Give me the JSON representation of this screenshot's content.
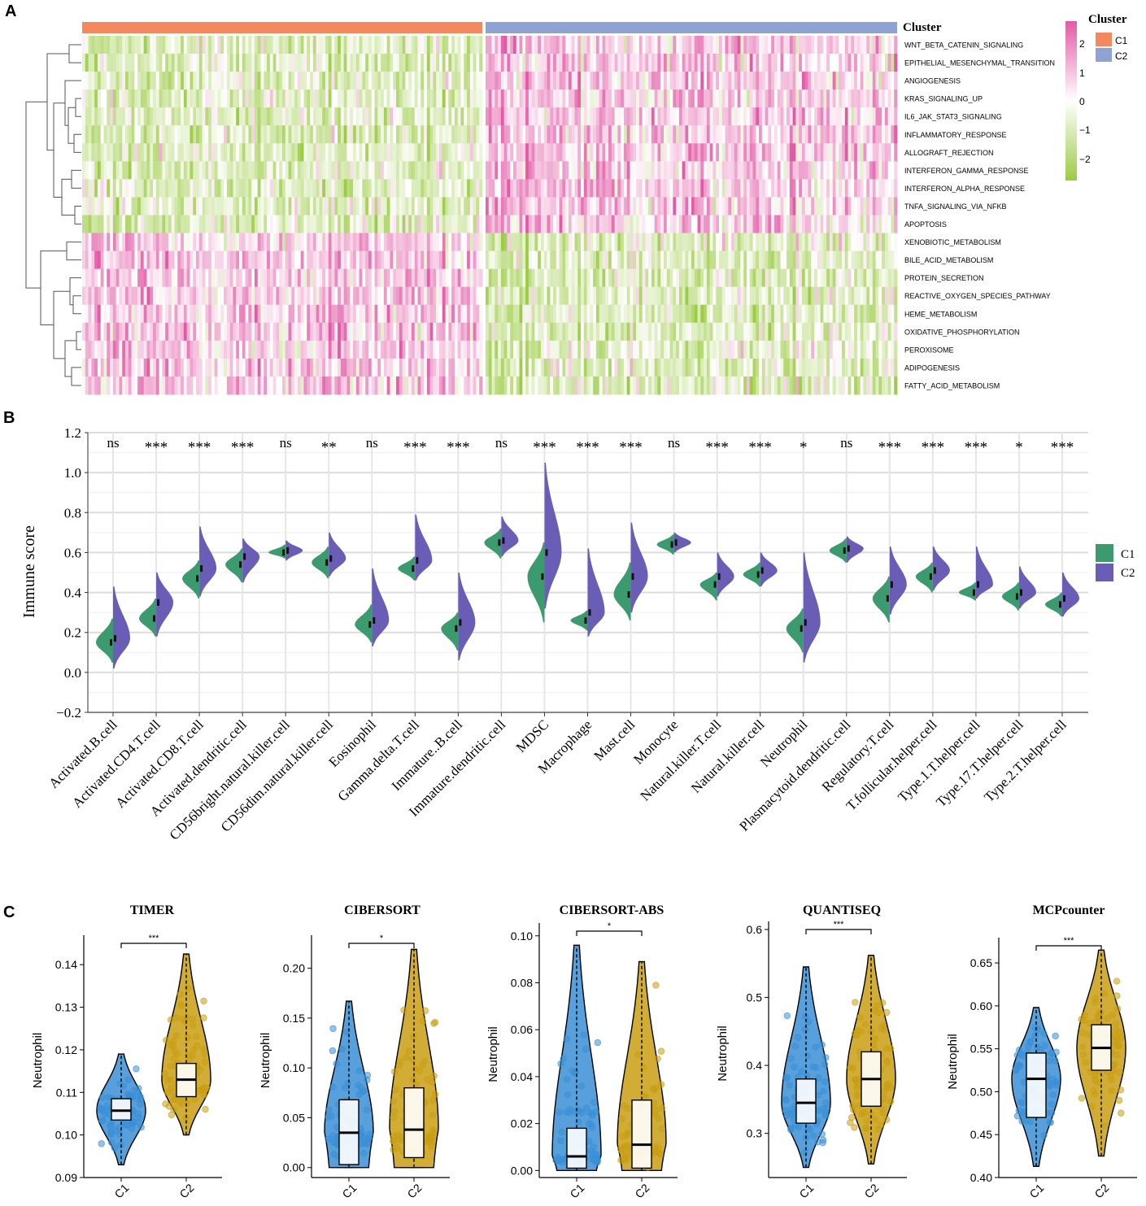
{
  "colors": {
    "c1_annot": "#f4895f",
    "c2_annot": "#8fa2d4",
    "heat_high": "#e25aa6",
    "heat_mid": "#ffffff",
    "heat_low": "#9ccb44",
    "violin_c1": "#3c9b6e",
    "violin_c2": "#6a5db5",
    "box_c1": "#3b8fd6",
    "box_c2": "#c99f13"
  },
  "panel_a": {
    "label": "A",
    "annotation_label": "Cluster",
    "legend_title": "Cluster",
    "legend_items": [
      "C1",
      "C2"
    ],
    "scale_ticks": [
      "2",
      "1",
      "0",
      "−1",
      "−2"
    ],
    "rows": [
      {
        "name": "WNT_BETA_CATENIN_SIGNALING",
        "pattern": -1
      },
      {
        "name": "EPITHELIAL_MESENCHYMAL_TRANSITION",
        "pattern": -1
      },
      {
        "name": "ANGIOGENESIS",
        "pattern": -1
      },
      {
        "name": "KRAS_SIGNALING_UP",
        "pattern": -1
      },
      {
        "name": "IL6_JAK_STAT3_SIGNALING",
        "pattern": -1
      },
      {
        "name": "INFLAMMATORY_RESPONSE",
        "pattern": -1
      },
      {
        "name": "ALLOGRAFT_REJECTION",
        "pattern": -1
      },
      {
        "name": "INTERFERON_GAMMA_RESPONSE",
        "pattern": -1
      },
      {
        "name": "INTERFERON_ALPHA_RESPONSE",
        "pattern": -1
      },
      {
        "name": "TNFA_SIGNALING_VIA_NFKB",
        "pattern": -1
      },
      {
        "name": "APOPTOSIS",
        "pattern": -1
      },
      {
        "name": "XENOBIOTIC_METABOLISM",
        "pattern": 1
      },
      {
        "name": "BILE_ACID_METABOLISM",
        "pattern": 1
      },
      {
        "name": "PROTEIN_SECRETION",
        "pattern": 1
      },
      {
        "name": "REACTIVE_OXYGEN_SPECIES_PATHWAY",
        "pattern": 1
      },
      {
        "name": "HEME_METABOLISM",
        "pattern": 1
      },
      {
        "name": "OXIDATIVE_PHOSPHORYLATION",
        "pattern": 1
      },
      {
        "name": "PEROXISOME",
        "pattern": 1
      },
      {
        "name": "ADIPOGENESIS",
        "pattern": 1
      },
      {
        "name": "FATTY_ACID_METABOLISM",
        "pattern": 1
      }
    ]
  },
  "panel_b": {
    "label": "B",
    "ylabel": "Immune score",
    "ylim": [
      -0.2,
      1.2
    ],
    "yticks": [
      "−0.2",
      "0.0",
      "0.2",
      "0.4",
      "0.6",
      "0.8",
      "1.0",
      "1.2"
    ],
    "legend": [
      "C1",
      "C2"
    ]
  },
  "chart_data": [
    {
      "type": "heatmap",
      "title": "",
      "columns_c1": 130,
      "columns_c2": 134,
      "value_range": [
        -2.5,
        2.5
      ],
      "note": "rows 1-11 higher in C2; rows 12-20 higher in C1"
    },
    {
      "type": "violin",
      "title": "",
      "xlabel": "",
      "ylabel": "Immune score",
      "ylim": [
        -0.2,
        1.2
      ],
      "categories": [
        "Activated.B.cell",
        "Activated.CD4.T.cell",
        "Activated.CD8.T.cell",
        "Activated.dendritic.cell",
        "CD56bright.natural.killer.cell",
        "CD56dim.natural.killer.cell",
        "Eosinophil",
        "Gamma.delta.T.cell",
        "Immature..B.cell",
        "Immature.dendritic.cell",
        "MDSC",
        "Macrophage",
        "Mast.cell",
        "Monocyte",
        "Natural.killer.T.cell",
        "Natural.killer.cell",
        "Neutrophil",
        "Plasmacytoid.dendritic.cell",
        "Regulatory.T.cell",
        "T.follicular.helper.cell",
        "Type.1.T.helper.cell",
        "Type.17.T.helper.cell",
        "Type.2.T.helper.cell"
      ],
      "significance": [
        "ns",
        "***",
        "***",
        "***",
        "ns",
        "**",
        "ns",
        "***",
        "***",
        "ns",
        "***",
        "***",
        "***",
        "ns",
        "***",
        "***",
        "*",
        "ns",
        "***",
        "***",
        "***",
        "*",
        "***"
      ],
      "series": [
        {
          "name": "C1",
          "median": [
            0.15,
            0.27,
            0.47,
            0.54,
            0.6,
            0.55,
            0.24,
            0.52,
            0.22,
            0.65,
            0.48,
            0.26,
            0.39,
            0.64,
            0.44,
            0.49,
            0.22,
            0.61,
            0.37,
            0.48,
            0.4,
            0.38,
            0.34
          ],
          "min": [
            0.05,
            0.18,
            0.37,
            0.45,
            0.57,
            0.47,
            0.15,
            0.46,
            0.11,
            0.57,
            0.25,
            0.21,
            0.26,
            0.59,
            0.36,
            0.43,
            0.1,
            0.55,
            0.25,
            0.4,
            0.36,
            0.31,
            0.28
          ],
          "max": [
            0.27,
            0.37,
            0.56,
            0.62,
            0.64,
            0.63,
            0.34,
            0.58,
            0.3,
            0.72,
            0.65,
            0.31,
            0.55,
            0.69,
            0.5,
            0.55,
            0.32,
            0.67,
            0.48,
            0.55,
            0.45,
            0.45,
            0.4
          ]
        },
        {
          "name": "C2",
          "median": [
            0.17,
            0.35,
            0.52,
            0.58,
            0.61,
            0.57,
            0.26,
            0.56,
            0.25,
            0.66,
            0.6,
            0.3,
            0.48,
            0.65,
            0.48,
            0.51,
            0.25,
            0.62,
            0.44,
            0.51,
            0.44,
            0.4,
            0.37
          ],
          "min": [
            0.02,
            0.18,
            0.38,
            0.45,
            0.56,
            0.48,
            0.13,
            0.46,
            0.06,
            0.58,
            0.32,
            0.18,
            0.3,
            0.6,
            0.38,
            0.43,
            0.05,
            0.55,
            0.29,
            0.41,
            0.37,
            0.32,
            0.28
          ],
          "max": [
            0.43,
            0.5,
            0.73,
            0.67,
            0.66,
            0.7,
            0.52,
            0.79,
            0.5,
            0.78,
            1.05,
            0.62,
            0.75,
            0.7,
            0.6,
            0.6,
            0.6,
            0.68,
            0.63,
            0.63,
            0.63,
            0.53,
            0.5
          ]
        }
      ]
    },
    {
      "type": "violin-box",
      "title": "TIMER",
      "ylabel": "Neutrophil",
      "ylim": [
        0.09,
        0.145
      ],
      "yticks": [
        "0.09",
        "0.10",
        "0.11",
        "0.12",
        "0.13",
        "0.14"
      ],
      "categories": [
        "C1",
        "C2"
      ],
      "significance": "***",
      "series": [
        {
          "name": "C1",
          "min": 0.093,
          "q1": 0.1035,
          "median": 0.1057,
          "q3": 0.1085,
          "max": 0.119
        },
        {
          "name": "C2",
          "min": 0.1,
          "q1": 0.109,
          "median": 0.113,
          "q3": 0.1168,
          "max": 0.1425
        }
      ]
    },
    {
      "type": "violin-box",
      "title": "CIBERSORT",
      "ylabel": "Neutrophil",
      "ylim": [
        -0.01,
        0.225
      ],
      "yticks": [
        "0.00",
        "0.05",
        "0.10",
        "0.15",
        "0.20"
      ],
      "categories": [
        "C1",
        "C2"
      ],
      "significance": "*",
      "series": [
        {
          "name": "C1",
          "min": 0.0,
          "q1": 0.003,
          "median": 0.035,
          "q3": 0.068,
          "max": 0.167
        },
        {
          "name": "C2",
          "min": 0.0,
          "q1": 0.01,
          "median": 0.038,
          "q3": 0.08,
          "max": 0.219
        }
      ]
    },
    {
      "type": "violin-box",
      "title": "CIBERSORT-ABS",
      "ylabel": "Neutrophil",
      "ylim": [
        -0.003,
        0.102
      ],
      "yticks": [
        "0.00",
        "0.02",
        "0.04",
        "0.06",
        "0.08",
        "0.10"
      ],
      "categories": [
        "C1",
        "C2"
      ],
      "significance": "*",
      "series": [
        {
          "name": "C1",
          "min": 0.0,
          "q1": 0.001,
          "median": 0.006,
          "q3": 0.018,
          "max": 0.096
        },
        {
          "name": "C2",
          "min": 0.0,
          "q1": 0.001,
          "median": 0.011,
          "q3": 0.03,
          "max": 0.089
        }
      ]
    },
    {
      "type": "violin-box",
      "title": "QUANTISEQ",
      "ylabel": "Neutrophil",
      "ylim": [
        0.235,
        0.6
      ],
      "yticks": [
        "0.3",
        "0.4",
        "0.5",
        "0.6"
      ],
      "categories": [
        "C1",
        "C2"
      ],
      "significance": "***",
      "series": [
        {
          "name": "C1",
          "min": 0.25,
          "q1": 0.315,
          "median": 0.345,
          "q3": 0.38,
          "max": 0.545
        },
        {
          "name": "C2",
          "min": 0.255,
          "q1": 0.34,
          "median": 0.38,
          "q3": 0.42,
          "max": 0.562
        }
      ]
    },
    {
      "type": "violin-box",
      "title": "MCPcounter",
      "ylabel": "Neutrophil",
      "ylim": [
        0.4,
        0.67
      ],
      "yticks": [
        "0.40",
        "0.45",
        "0.50",
        "0.55",
        "0.60",
        "0.65"
      ],
      "categories": [
        "C1",
        "C2"
      ],
      "significance": "***",
      "series": [
        {
          "name": "C1",
          "min": 0.413,
          "q1": 0.47,
          "median": 0.515,
          "q3": 0.545,
          "max": 0.598
        },
        {
          "name": "C2",
          "min": 0.425,
          "q1": 0.525,
          "median": 0.551,
          "q3": 0.578,
          "max": 0.665
        }
      ]
    }
  ],
  "panel_c": {
    "label": "C"
  }
}
